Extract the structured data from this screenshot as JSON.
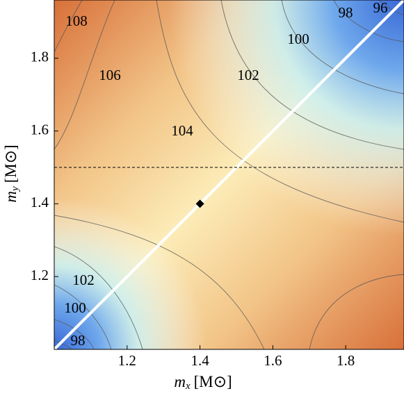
{
  "chart_data": {
    "type": "contour",
    "x_label": {
      "symbol": "m",
      "subscript": "x",
      "unit": "[M⊙]"
    },
    "y_label": {
      "symbol": "m",
      "subscript": "y",
      "unit": "[M⊙]"
    },
    "xlim": [
      1.0,
      1.96
    ],
    "ylim": [
      1.0,
      1.96
    ],
    "xticks": [
      1.2,
      1.4,
      1.6,
      1.8
    ],
    "yticks": [
      1.2,
      1.4,
      1.6,
      1.8
    ],
    "contour_labels": [
      108,
      106,
      104,
      102,
      100,
      98,
      96,
      102,
      100,
      98
    ],
    "reference_line_y": 1.5,
    "marker": {
      "x": 1.4,
      "y": 1.4
    },
    "equal_mass_line": true
  }
}
